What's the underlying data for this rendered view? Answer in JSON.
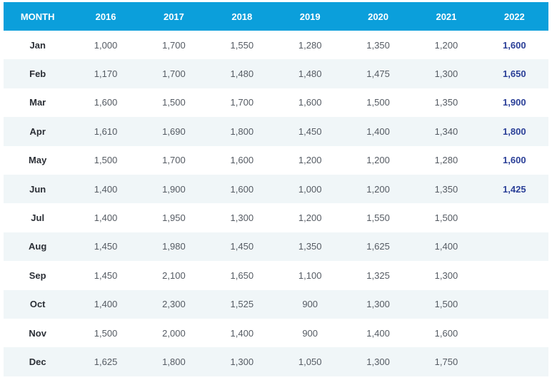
{
  "table": {
    "headers": [
      "MONTH",
      "2016",
      "2017",
      "2018",
      "2019",
      "2020",
      "2021",
      "2022"
    ],
    "rows": [
      [
        "Jan",
        "1,000",
        "1,700",
        "1,550",
        "1,280",
        "1,350",
        "1,200",
        "1,600"
      ],
      [
        "Feb",
        "1,170",
        "1,700",
        "1,480",
        "1,480",
        "1,475",
        "1,300",
        "1,650"
      ],
      [
        "Mar",
        "1,600",
        "1,500",
        "1,700",
        "1,600",
        "1,500",
        "1,350",
        "1,900"
      ],
      [
        "Apr",
        "1,610",
        "1,690",
        "1,800",
        "1,450",
        "1,400",
        "1,340",
        "1,800"
      ],
      [
        "May",
        "1,500",
        "1,700",
        "1,600",
        "1,200",
        "1,200",
        "1,280",
        "1,600"
      ],
      [
        "Jun",
        "1,400",
        "1,900",
        "1,600",
        "1,000",
        "1,200",
        "1,350",
        "1,425"
      ],
      [
        "Jul",
        "1,400",
        "1,950",
        "1,300",
        "1,200",
        "1,550",
        "1,500",
        ""
      ],
      [
        "Aug",
        "1,450",
        "1,980",
        "1,450",
        "1,350",
        "1,625",
        "1,400",
        ""
      ],
      [
        "Sep",
        "1,450",
        "2,100",
        "1,650",
        "1,100",
        "1,325",
        "1,300",
        ""
      ],
      [
        "Oct",
        "1,400",
        "2,300",
        "1,525",
        "900",
        "1,300",
        "1,500",
        ""
      ],
      [
        "Nov",
        "1,500",
        "2,000",
        "1,400",
        "900",
        "1,400",
        "1,600",
        ""
      ],
      [
        "Dec",
        "1,625",
        "1,800",
        "1,300",
        "1,050",
        "1,300",
        "1,750",
        ""
      ]
    ]
  },
  "colors": {
    "header_bg": "#0b9fdb",
    "header_text": "#ffffff",
    "stripe": "#f0f6f8",
    "body_text": "#555b63",
    "highlight_2022": "#2a3f97"
  }
}
